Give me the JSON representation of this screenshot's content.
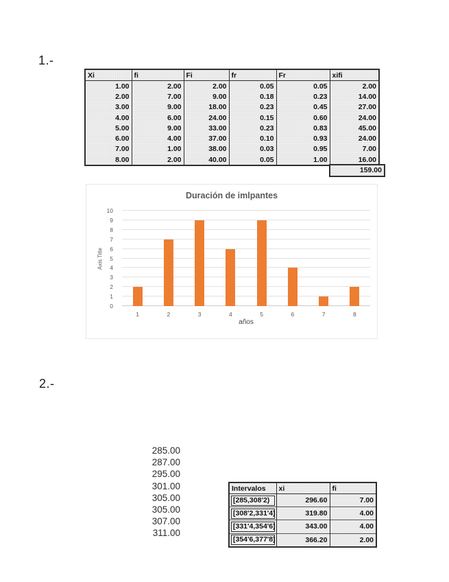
{
  "page": {
    "section1_label": "1.-",
    "section2_label": "2.-"
  },
  "table1": {
    "headers": [
      "Xi",
      "fi",
      "Fi",
      "fr",
      "Fr",
      "xifi"
    ],
    "rows": [
      [
        "1.00",
        "2.00",
        "2.00",
        "0.05",
        "0.05",
        "2.00"
      ],
      [
        "2.00",
        "7.00",
        "9.00",
        "0.18",
        "0.23",
        "14.00"
      ],
      [
        "3.00",
        "9.00",
        "18.00",
        "0.23",
        "0.45",
        "27.00"
      ],
      [
        "4.00",
        "6.00",
        "24.00",
        "0.15",
        "0.60",
        "24.00"
      ],
      [
        "5.00",
        "9.00",
        "33.00",
        "0.23",
        "0.83",
        "45.00"
      ],
      [
        "6.00",
        "4.00",
        "37.00",
        "0.10",
        "0.93",
        "24.00"
      ],
      [
        "7.00",
        "1.00",
        "38.00",
        "0.03",
        "0.95",
        "7.00"
      ],
      [
        "8.00",
        "2.00",
        "40.00",
        "0.05",
        "1.00",
        "16.00"
      ]
    ],
    "total": "159.00"
  },
  "chart_data": {
    "type": "bar",
    "title": "Duración de imlpantes",
    "xlabel": "años",
    "ylabel": "Axis Title",
    "categories": [
      "1",
      "2",
      "3",
      "4",
      "5",
      "6",
      "7",
      "8"
    ],
    "values": [
      2,
      7,
      9,
      6,
      9,
      4,
      1,
      2
    ],
    "ylim": [
      0,
      10
    ],
    "ytick_step": 1,
    "grid": true,
    "legend": "none",
    "bar_color": "#ED7D31"
  },
  "numbers_list": [
    "285.00",
    "287.00",
    "295.00",
    "301.00",
    "305.00",
    "305.00",
    "307.00",
    "311.00"
  ],
  "table2": {
    "headers": [
      "Intervalos",
      "xi",
      "fi"
    ],
    "rows": [
      [
        "[285,308'2)",
        "296.60",
        "7.00"
      ],
      [
        "[308'2,331'4)",
        "319.80",
        "4.00"
      ],
      [
        "[331'4,354'6)",
        "343.00",
        "4.00"
      ],
      [
        "[354'6,377'8)",
        "366.20",
        "2.00"
      ]
    ]
  },
  "colors": {
    "bar": "#ED7D31",
    "chart_text": "#595959",
    "gridline": "#E2E2E2",
    "table_bg": "#ECECEC",
    "table_border": "#2E2E2E"
  }
}
